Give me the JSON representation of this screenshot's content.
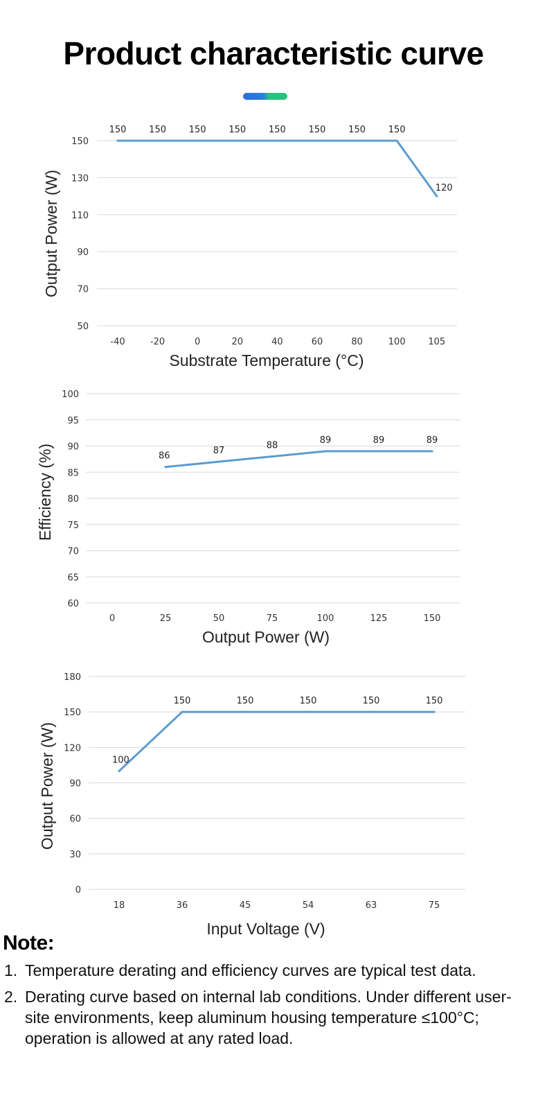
{
  "page": {
    "title": "Product characteristic curve"
  },
  "notes": {
    "heading": "Note:",
    "items": [
      {
        "num": "1.",
        "text": "Temperature derating and efficiency curves are typical test data."
      },
      {
        "num": "2.",
        "text": "Derating curve based on internal lab conditions. Under different user-site environments, keep aluminum housing temperature ≤100°C; operation is allowed at any rated load."
      }
    ]
  },
  "colors": {
    "line": "#5b9bd1",
    "grid": "#d9d9d9",
    "accent_blue": "#2a6fdb",
    "accent_green": "#2ec27e"
  },
  "chart_data": [
    {
      "type": "line",
      "title": "",
      "xlabel": "Substrate Temperature (°C)",
      "ylabel": "Output Power (W)",
      "categories": [
        "-40",
        "-20",
        "0",
        "20",
        "40",
        "60",
        "80",
        "100",
        "105"
      ],
      "ylim": [
        50,
        150
      ],
      "yticks": [
        50,
        70,
        90,
        110,
        130,
        150
      ],
      "grid": true,
      "series": [
        {
          "points": [
            {
              "x": "-40",
              "y": 150,
              "label": "150"
            },
            {
              "x": "-20",
              "y": 150,
              "label": "150"
            },
            {
              "x": "0",
              "y": 150,
              "label": "150"
            },
            {
              "x": "20",
              "y": 150,
              "label": "150"
            },
            {
              "x": "40",
              "y": 150,
              "label": "150"
            },
            {
              "x": "60",
              "y": 150,
              "label": "150"
            },
            {
              "x": "80",
              "y": 150,
              "label": "150"
            },
            {
              "x": "100",
              "y": 150,
              "label": "150"
            },
            {
              "x": "105",
              "y": 120,
              "label": "120"
            }
          ]
        }
      ]
    },
    {
      "type": "line",
      "title": "",
      "xlabel": "Output Power (W)",
      "ylabel": "Efficiency (%)",
      "categories": [
        "0",
        "25",
        "50",
        "75",
        "100",
        "125",
        "150"
      ],
      "ylim": [
        60,
        100
      ],
      "yticks": [
        60,
        65,
        70,
        75,
        80,
        85,
        90,
        95,
        100
      ],
      "grid": true,
      "series": [
        {
          "points": [
            {
              "x": "25",
              "y": 86,
              "label": "86"
            },
            {
              "x": "50",
              "y": 87,
              "label": "87"
            },
            {
              "x": "75",
              "y": 88,
              "label": "88"
            },
            {
              "x": "100",
              "y": 89,
              "label": "89"
            },
            {
              "x": "125",
              "y": 89,
              "label": "89"
            },
            {
              "x": "150",
              "y": 89,
              "label": "89"
            }
          ]
        }
      ]
    },
    {
      "type": "line",
      "title": "",
      "xlabel": "Input Voltage (V)",
      "ylabel": "Output Power (W)",
      "categories": [
        "18",
        "36",
        "45",
        "54",
        "63",
        "75"
      ],
      "ylim": [
        0,
        180
      ],
      "yticks": [
        0,
        30,
        60,
        90,
        120,
        150,
        180
      ],
      "grid": true,
      "series": [
        {
          "points": [
            {
              "x": "18",
              "y": 100,
              "label": "100"
            },
            {
              "x": "36",
              "y": 150,
              "label": "150"
            },
            {
              "x": "45",
              "y": 150,
              "label": "150"
            },
            {
              "x": "54",
              "y": 150,
              "label": "150"
            },
            {
              "x": "63",
              "y": 150,
              "label": "150"
            },
            {
              "x": "75",
              "y": 150,
              "label": "150"
            }
          ]
        }
      ]
    }
  ]
}
